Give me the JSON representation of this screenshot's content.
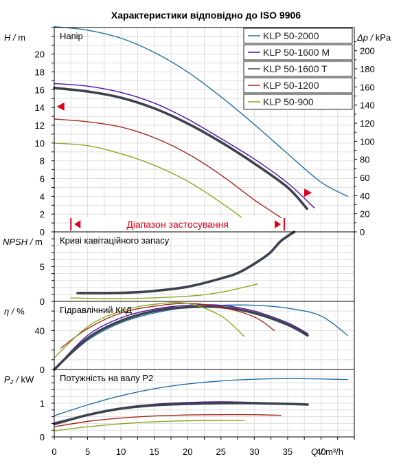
{
  "colors": {
    "KLP 50-2000": "#1f6fa4",
    "KLP 50-1600 M": "#4b0fa3",
    "KLP 50-1600 T": "#3c424c",
    "KLP 50-1200": "#a8281a",
    "KLP 50-900": "#8aa820",
    "grid": "#dddddd",
    "range_marker": "#e0001a"
  },
  "chart_data": {
    "type": "line",
    "title": "Характеристики відповідно до ISO 9906",
    "x_axis": {
      "label": "Q",
      "unit": "m³/h",
      "range": [
        0,
        45
      ],
      "ticks": [
        0,
        5,
        10,
        15,
        20,
        25,
        30,
        35,
        40
      ]
    },
    "legend": {
      "position": "top-right",
      "entries": [
        "KLP 50-2000",
        "KLP 50-1600 M",
        "KLP 50-1600 T",
        "KLP 50-1200",
        "KLP 50-900"
      ]
    },
    "application_range": {
      "label": "Діапазон застосування",
      "q_min": 2.5,
      "q_max": 34.5
    },
    "panels": [
      {
        "id": "head",
        "title": "Напір",
        "ylabel": "H",
        "yunit": "m",
        "ylim": [
          0,
          23
        ],
        "yticks": [
          0,
          2,
          4,
          6,
          8,
          10,
          12,
          14,
          16,
          18,
          20
        ],
        "secondary_axis": {
          "label": "Δp",
          "unit": "kPa",
          "ticks": [
            0,
            20,
            40,
            60,
            80,
            100,
            120,
            140,
            160,
            180,
            200
          ]
        },
        "markers": [
          {
            "q": 1,
            "h": 14.1,
            "direction": "left"
          },
          {
            "q": 38,
            "h": 4.4,
            "direction": "right"
          }
        ],
        "series": [
          {
            "name": "KLP 50-2000",
            "x": [
              0,
              5,
              10,
              15,
              20,
              25,
              30,
              35,
              40,
              44
            ],
            "y": [
              23.1,
              22.7,
              21.8,
              20.2,
              18.0,
              15.2,
              12.1,
              8.8,
              5.6,
              4.0
            ]
          },
          {
            "name": "KLP 50-1600 M",
            "x": [
              0,
              5,
              10,
              15,
              20,
              25,
              30,
              35,
              39
            ],
            "y": [
              16.7,
              16.4,
              15.7,
              14.5,
              12.7,
              10.5,
              8.2,
              5.5,
              2.7
            ]
          },
          {
            "name": "KLP 50-1600 T",
            "x": [
              0,
              5,
              10,
              15,
              20,
              25,
              30,
              35,
              37.9
            ],
            "y": [
              16.2,
              15.8,
              15.1,
              13.9,
              12.2,
              10.1,
              7.7,
              5.0,
              2.6
            ]
          },
          {
            "name": "KLP 50-1200",
            "x": [
              0,
              5,
              10,
              15,
              20,
              25,
              30,
              34
            ],
            "y": [
              12.7,
              12.4,
              11.8,
              10.6,
              8.8,
              6.4,
              3.6,
              1.6
            ]
          },
          {
            "name": "KLP 50-900",
            "x": [
              0,
              5,
              10,
              15,
              20,
              25,
              28.5
            ],
            "y": [
              10.0,
              9.7,
              8.8,
              7.5,
              5.7,
              3.3,
              1.4
            ]
          }
        ]
      },
      {
        "id": "npsh",
        "title": "Криві кавітаційного запасу",
        "ylabel": "NPSH",
        "yunit": "m",
        "ylim": [
          0,
          10
        ],
        "yticks": [
          0,
          5
        ],
        "series": [
          {
            "name": "KLP 50-1600 T",
            "x": [
              3.5,
              8,
              12,
              15,
              20,
              25,
              28,
              32,
              34,
              36
            ],
            "y": [
              1.2,
              1.2,
              1.3,
              1.5,
              2.1,
              3.3,
              4.3,
              6.7,
              8.7,
              10.0
            ]
          },
          {
            "name": "KLP 50-900",
            "x": [
              2.5,
              8,
              15,
              22,
              26,
              30.5
            ],
            "y": [
              0.5,
              0.4,
              0.5,
              0.9,
              1.5,
              2.5
            ]
          }
        ]
      },
      {
        "id": "efficiency",
        "title": "Гідравлічний ККД",
        "ylabel": "η",
        "yunit": "%",
        "ylim": [
          0,
          70
        ],
        "yticks": [
          0,
          40
        ],
        "series": [
          {
            "name": "KLP 50-2000",
            "x": [
              0,
              5,
              10,
              15,
              20,
              25,
              30,
              35,
              40,
              44
            ],
            "y": [
              0,
              30,
              48,
              58,
              64,
              66,
              66,
              63,
              55,
              35
            ]
          },
          {
            "name": "KLP 50-1600 M",
            "x": [
              0,
              5,
              10,
              15,
              20,
              25,
              30,
              35,
              38
            ],
            "y": [
              0,
              35,
              53,
              62,
              66,
              66,
              60,
              48,
              37
            ]
          },
          {
            "name": "KLP 50-1600 T",
            "x": [
              0,
              5,
              10,
              15,
              20,
              25,
              30,
              35,
              38
            ],
            "y": [
              0,
              32,
              50,
              60,
              64,
              64,
              58,
              46,
              35
            ]
          },
          {
            "name": "KLP 50-1200",
            "x": [
              1,
              5,
              10,
              15,
              20,
              25,
              30,
              33
            ],
            "y": [
              22,
              42,
              58,
              65,
              68,
              64,
              54,
              40
            ]
          },
          {
            "name": "KLP 50-900",
            "x": [
              0,
              5,
              10,
              15,
              20,
              25,
              28.5
            ],
            "y": [
              12,
              44,
              60,
              67,
              68,
              55,
              34
            ]
          }
        ]
      },
      {
        "id": "power",
        "title": "Потужність на валу P2",
        "ylabel": "P₂",
        "yunit": "kW",
        "ylim": [
          0,
          2
        ],
        "yticks": [
          0,
          1
        ],
        "series": [
          {
            "name": "KLP 50-2000",
            "x": [
              0,
              5,
              10,
              15,
              20,
              25,
              30,
              35,
              40,
              44
            ],
            "y": [
              0.63,
              0.95,
              1.22,
              1.43,
              1.57,
              1.66,
              1.71,
              1.73,
              1.72,
              1.7
            ]
          },
          {
            "name": "KLP 50-1600 M",
            "x": [
              0,
              5,
              10,
              15,
              20,
              25,
              30,
              35,
              38
            ],
            "y": [
              0.42,
              0.66,
              0.86,
              0.97,
              1.02,
              1.04,
              1.02,
              0.98,
              0.95
            ]
          },
          {
            "name": "KLP 50-1600 T",
            "x": [
              0,
              5,
              10,
              15,
              20,
              25,
              30,
              35,
              38
            ],
            "y": [
              0.38,
              0.65,
              0.84,
              0.94,
              0.98,
              1.0,
              1.0,
              0.98,
              0.96
            ]
          },
          {
            "name": "KLP 50-1200",
            "x": [
              0,
              5,
              10,
              15,
              20,
              25,
              30,
              34
            ],
            "y": [
              0.3,
              0.46,
              0.56,
              0.62,
              0.65,
              0.66,
              0.66,
              0.64
            ]
          },
          {
            "name": "KLP 50-900",
            "x": [
              0,
              5,
              10,
              15,
              20,
              25,
              28.5
            ],
            "y": [
              0.18,
              0.3,
              0.39,
              0.45,
              0.48,
              0.49,
              0.49
            ]
          }
        ]
      }
    ]
  }
}
